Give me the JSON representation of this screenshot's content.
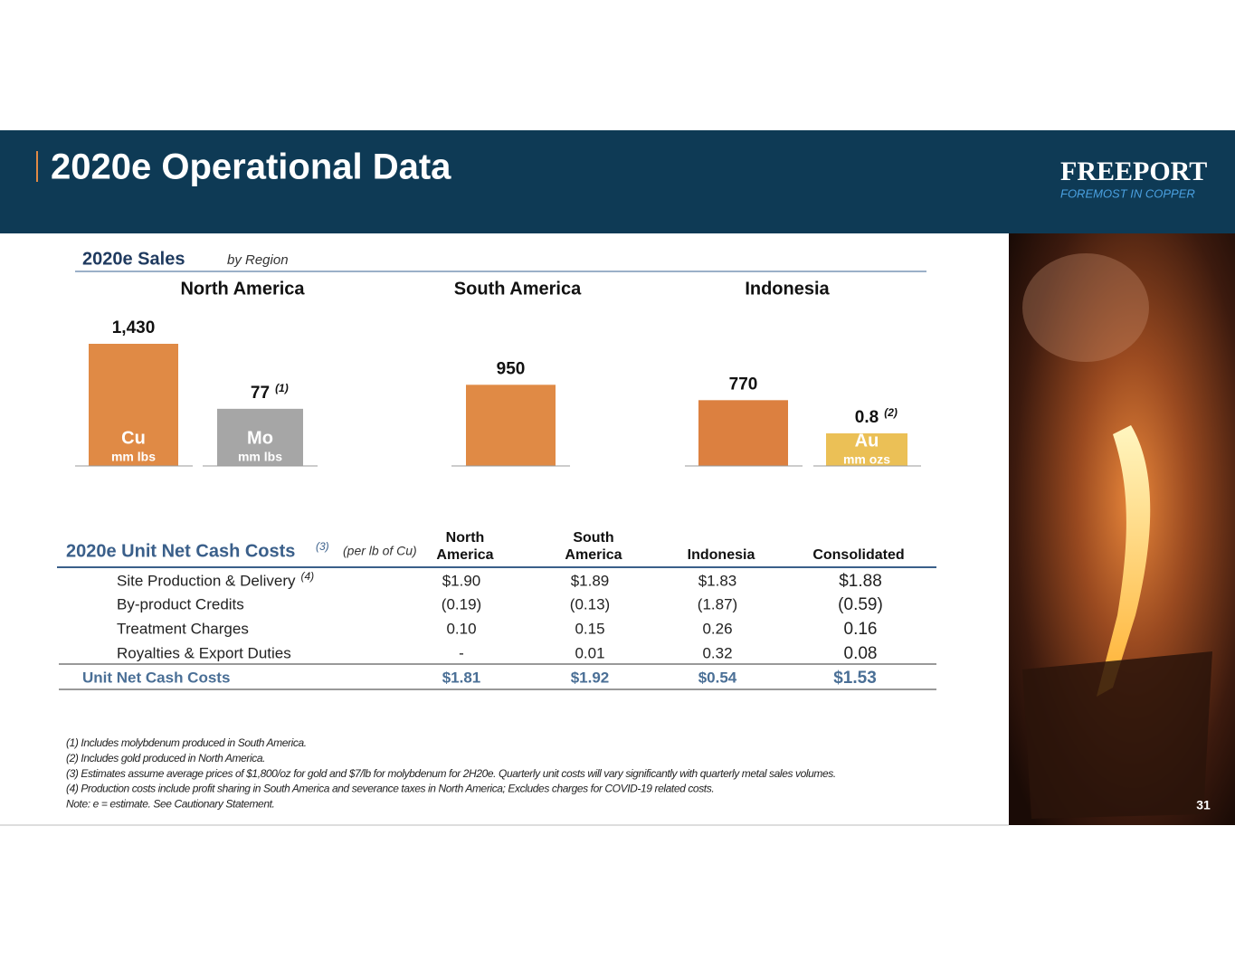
{
  "header": {
    "title": "2020e Operational Data",
    "logo": "FREEPORT",
    "tagline": "FOREMOST IN COPPER"
  },
  "sales": {
    "title": "2020e Sales",
    "subtitle": "by Region",
    "regions": [
      {
        "name": "North America",
        "bars": [
          {
            "value": 1430,
            "value_label": "1,430",
            "metal": "Cu",
            "unit": "mm lbs",
            "color": "#e08a45"
          },
          {
            "value": 77,
            "note": "(1)",
            "metal": "Mo",
            "unit": "mm lbs",
            "color": "#a6a6a6"
          }
        ]
      },
      {
        "name": "South America",
        "bars": [
          {
            "value": 950,
            "color": "#e08a45"
          }
        ]
      },
      {
        "name": "Indonesia",
        "bars": [
          {
            "value": 770,
            "color": "#dc8040"
          },
          {
            "value": 0.8,
            "note": "(2)",
            "metal": "Au",
            "unit": "mm ozs",
            "color": "#ebc056"
          }
        ]
      }
    ]
  },
  "costs": {
    "title": "2020e Unit Net Cash Costs",
    "title_note": "(3)",
    "subtitle": "(per lb of Cu)",
    "columns": [
      "North America",
      "South America",
      "Indonesia",
      "Consolidated"
    ],
    "rows": [
      {
        "label": "Site Production & Delivery",
        "note": "(4)",
        "cells": [
          "$1.90",
          "$1.89",
          "$1.83",
          "$1.88"
        ]
      },
      {
        "label": "By-product Credits",
        "cells": [
          "(0.19)",
          "(0.13)",
          "(1.87)",
          "(0.59)"
        ]
      },
      {
        "label": "Treatment Charges",
        "cells": [
          "0.10",
          "0.15",
          "0.26",
          "0.16"
        ]
      },
      {
        "label": "Royalties & Export Duties",
        "cells": [
          "-",
          "0.01",
          "0.32",
          "0.08"
        ]
      }
    ],
    "total": {
      "label": "Unit Net Cash Costs",
      "cells": [
        "$1.81",
        "$1.92",
        "$0.54",
        "$1.53"
      ]
    }
  },
  "footnotes": [
    "(1) Includes molybdenum produced in South America.",
    "(2) Includes gold produced in North America.",
    "(3) Estimates assume average prices of $1,800/oz for gold and $7/lb for molybdenum for 2H20e. Quarterly unit costs will vary significantly with quarterly metal sales volumes.",
    "(4) Production costs include profit sharing in South America and severance taxes in North America; Excludes charges for COVID-19 related costs.",
    "Note: e = estimate. See Cautionary Statement."
  ],
  "page_number": "31"
}
